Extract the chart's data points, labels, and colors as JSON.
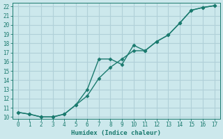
{
  "xlabel": "Humidex (Indice chaleur)",
  "ylabel": "",
  "xlim": [
    -0.5,
    17.5
  ],
  "ylim": [
    9.8,
    22.4
  ],
  "xticks": [
    0,
    1,
    2,
    3,
    4,
    5,
    6,
    7,
    8,
    9,
    10,
    11,
    12,
    13,
    14,
    15,
    16,
    17
  ],
  "yticks": [
    10,
    11,
    12,
    13,
    14,
    15,
    16,
    17,
    18,
    19,
    20,
    21,
    22
  ],
  "background_color": "#cce8ec",
  "grid_color": "#b0d0d8",
  "line_color": "#1a7a6e",
  "series1_x": [
    0,
    1,
    2,
    3,
    4,
    5,
    6,
    7,
    8,
    9,
    10,
    11,
    12,
    13,
    14,
    15,
    16,
    17
  ],
  "series1_y": [
    10.5,
    10.3,
    10.0,
    10.0,
    10.3,
    11.3,
    13.0,
    16.3,
    16.3,
    15.7,
    17.8,
    17.2,
    18.2,
    18.9,
    20.2,
    21.6,
    21.9,
    22.1
  ],
  "series2_x": [
    0,
    1,
    2,
    3,
    4,
    5,
    6,
    7,
    8,
    9,
    10,
    11,
    12,
    13,
    14,
    15,
    16,
    17
  ],
  "series2_y": [
    10.5,
    10.3,
    10.0,
    10.0,
    10.3,
    11.3,
    12.3,
    14.2,
    15.4,
    16.3,
    17.2,
    17.2,
    18.2,
    18.9,
    20.2,
    21.6,
    21.9,
    22.1
  ],
  "marker": "D",
  "marker_size": 2.5,
  "line_width": 1.0
}
